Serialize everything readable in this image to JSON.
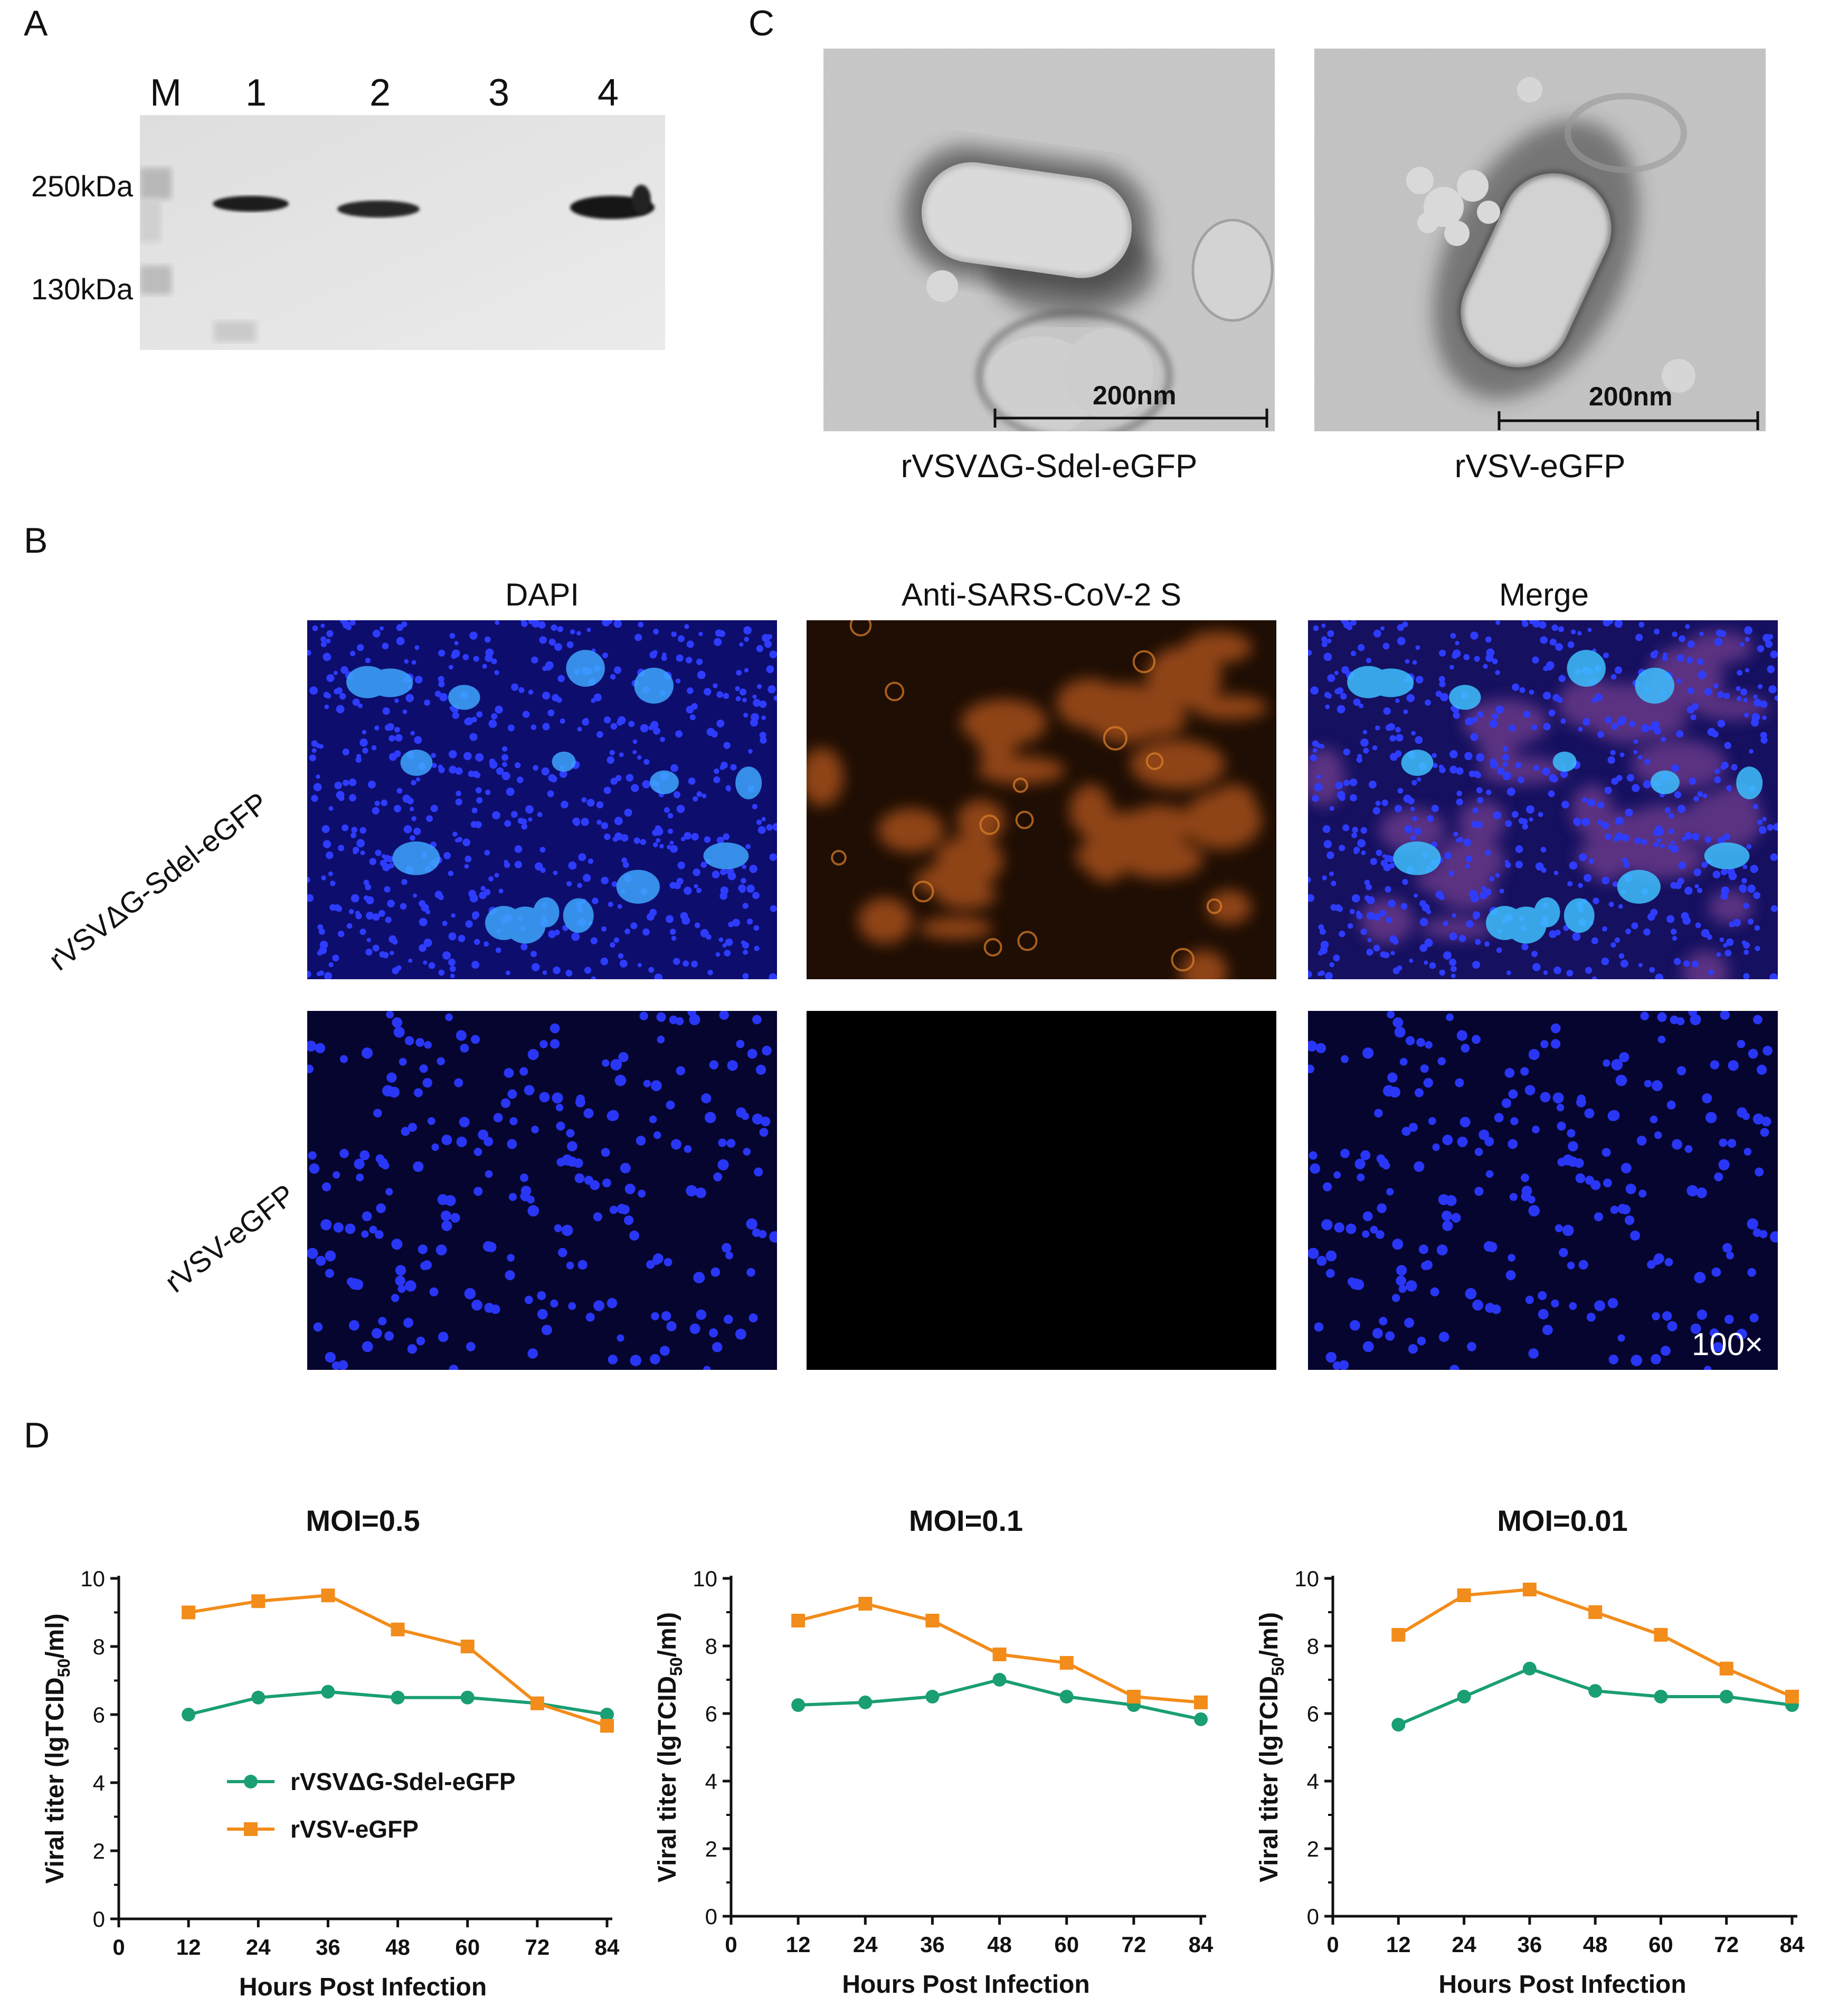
{
  "panel_a": {
    "letter": "A",
    "lane_labels": [
      "M",
      "1",
      "2",
      "3",
      "4"
    ],
    "mw_markers": [
      "250kDa",
      "130kDa"
    ]
  },
  "panel_b": {
    "letter": "B",
    "columns": [
      "DAPI",
      "Anti-SARS-CoV-2 S",
      "Merge"
    ],
    "rows": [
      "rVSVΔG-Sdel-eGFP",
      "rVSV-eGFP"
    ],
    "magnification": "100×"
  },
  "panel_c": {
    "letter": "C",
    "scale_bar": "200nm",
    "captions": [
      "rVSVΔG-Sdel-eGFP",
      "rVSV-eGFP"
    ]
  },
  "panel_d": {
    "letter": "D",
    "legend": [
      "rVSVΔG-Sdel-eGFP",
      "rVSV-eGFP"
    ]
  },
  "colors": {
    "green": "#1a9e73",
    "orange": "#f28c1a"
  },
  "chart_data": [
    {
      "type": "line",
      "title": "MOI=0.5",
      "xlabel": "Hours Post Infection",
      "ylabel": "Viral titer (lgTCID50/ml)",
      "xlim": [
        0,
        84
      ],
      "ylim": [
        0,
        10
      ],
      "xticks": [
        0,
        12,
        24,
        36,
        48,
        60,
        72,
        84
      ],
      "yticks": [
        0,
        2,
        4,
        6,
        8,
        10
      ],
      "x": [
        12,
        24,
        36,
        48,
        60,
        72,
        84
      ],
      "legend_position": "lower-left",
      "series": [
        {
          "name": "rVSVΔG-Sdel-eGFP",
          "color": "#1a9e73",
          "marker": "circle",
          "values": [
            6.0,
            6.5,
            6.67,
            6.5,
            6.5,
            6.33,
            6.0
          ]
        },
        {
          "name": "rVSV-eGFP",
          "color": "#f28c1a",
          "marker": "square",
          "values": [
            9.0,
            9.33,
            9.5,
            8.5,
            8.0,
            6.33,
            5.67
          ]
        }
      ]
    },
    {
      "type": "line",
      "title": "MOI=0.1",
      "xlabel": "Hours Post Infection",
      "ylabel": "Viral titer (lgTCID50/ml)",
      "xlim": [
        0,
        84
      ],
      "ylim": [
        0,
        10
      ],
      "xticks": [
        0,
        12,
        24,
        36,
        48,
        60,
        72,
        84
      ],
      "yticks": [
        0,
        2,
        4,
        6,
        8,
        10
      ],
      "x": [
        12,
        24,
        36,
        48,
        60,
        72,
        84
      ],
      "series": [
        {
          "name": "rVSVΔG-Sdel-eGFP",
          "color": "#1a9e73",
          "marker": "circle",
          "values": [
            6.25,
            6.33,
            6.5,
            7.0,
            6.5,
            6.25,
            5.83
          ]
        },
        {
          "name": "rVSV-eGFP",
          "color": "#f28c1a",
          "marker": "square",
          "values": [
            8.75,
            9.25,
            8.75,
            7.75,
            7.5,
            6.5,
            6.33
          ]
        }
      ]
    },
    {
      "type": "line",
      "title": "MOI=0.01",
      "xlabel": "Hours Post Infection",
      "ylabel": "Viral titer (lgTCID50/ml)",
      "xlim": [
        0,
        84
      ],
      "ylim": [
        0,
        10
      ],
      "xticks": [
        0,
        12,
        24,
        36,
        48,
        60,
        72,
        84
      ],
      "yticks": [
        0,
        2,
        4,
        6,
        8,
        10
      ],
      "x": [
        12,
        24,
        36,
        48,
        60,
        72,
        84
      ],
      "series": [
        {
          "name": "rVSVΔG-Sdel-eGFP",
          "color": "#1a9e73",
          "marker": "circle",
          "values": [
            5.67,
            6.5,
            7.33,
            6.67,
            6.5,
            6.5,
            6.25
          ]
        },
        {
          "name": "rVSV-eGFP",
          "color": "#f28c1a",
          "marker": "square",
          "values": [
            8.33,
            9.5,
            9.67,
            9.0,
            8.33,
            7.33,
            6.5
          ]
        }
      ]
    }
  ]
}
